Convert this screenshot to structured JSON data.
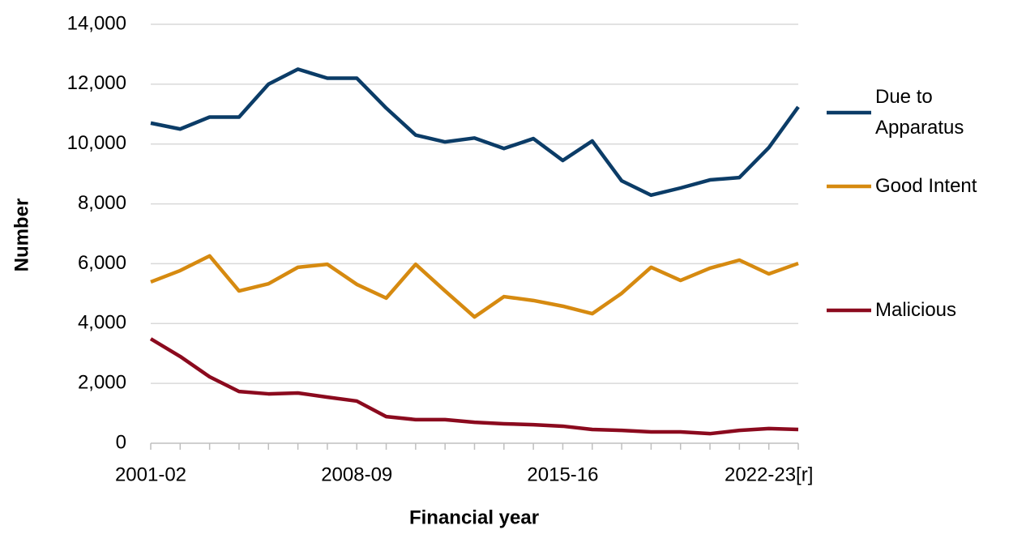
{
  "chart_data": {
    "type": "line",
    "x_label": "Financial year",
    "y_label": "Number",
    "categories": [
      "2001-02",
      null,
      null,
      null,
      null,
      null,
      null,
      "2008-09",
      null,
      null,
      null,
      null,
      null,
      null,
      "2015-16",
      null,
      null,
      null,
      null,
      null,
      null,
      "2022-23[r]",
      null
    ],
    "series": [
      {
        "name": "Due to Apparatus",
        "color": "#0b3c67",
        "values": [
          10700,
          10500,
          10900,
          10900,
          12000,
          12500,
          12200,
          12200,
          11200,
          10300,
          10070,
          10200,
          9850,
          10180,
          9450,
          10100,
          8770,
          8290,
          8530,
          8800,
          8880,
          9880,
          11240
        ]
      },
      {
        "name": "Good Intent",
        "color": "#d68a10",
        "values": [
          5390,
          5770,
          6260,
          5090,
          5330,
          5880,
          5980,
          5310,
          4850,
          5980,
          5090,
          4220,
          4900,
          4770,
          4580,
          4330,
          5010,
          5880,
          5440,
          5850,
          6120,
          5660,
          6010
        ]
      },
      {
        "name": "Malicious",
        "color": "#8b0a1e",
        "values": [
          3490,
          2900,
          2220,
          1730,
          1650,
          1680,
          1540,
          1410,
          890,
          790,
          790,
          700,
          650,
          620,
          570,
          460,
          430,
          380,
          380,
          320,
          430,
          490,
          460
        ]
      }
    ],
    "ylim": [
      0,
      14000
    ],
    "yticks": [
      0,
      {
        "value": 2000,
        "label": "2,000"
      },
      {
        "value": 4000,
        "label": "4,000"
      },
      {
        "value": 6000,
        "label": "6,000"
      },
      {
        "value": 8000,
        "label": "8,000"
      },
      {
        "value": 10000,
        "label": "10,000"
      },
      {
        "value": 12000,
        "label": "12,000"
      },
      {
        "value": 14000,
        "label": "14,000"
      }
    ],
    "grid": true,
    "legend": "right"
  }
}
